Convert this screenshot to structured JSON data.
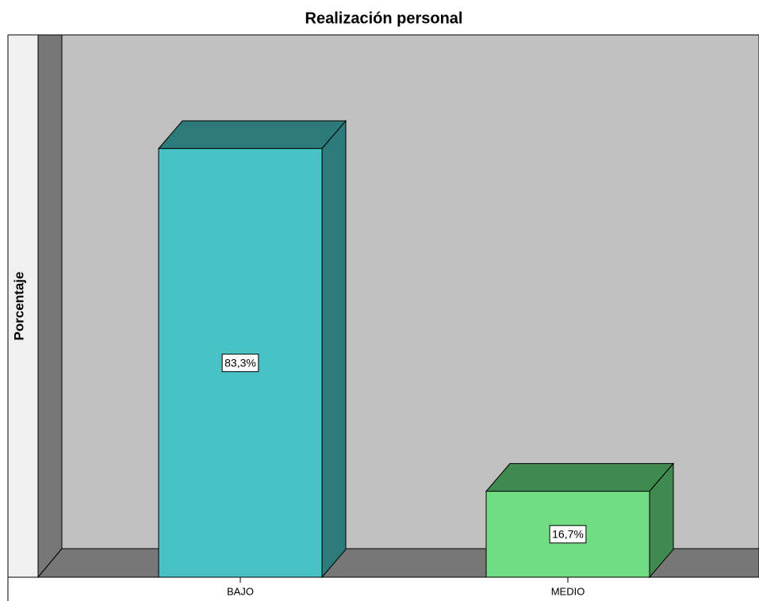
{
  "chart_data": {
    "type": "bar3d",
    "title": "Realización personal",
    "y_label": "Porcentaje",
    "categories": [
      "BAJO",
      "MEDIO"
    ],
    "values": [
      83.3,
      16.7
    ],
    "value_labels": [
      "83,3%",
      "16,7%"
    ],
    "colors": [
      "#48c2c5",
      "#70dc84"
    ],
    "side_colors": [
      "#2c7a7a",
      "#3f8a4f"
    ],
    "ylim": [
      0,
      100
    ]
  }
}
